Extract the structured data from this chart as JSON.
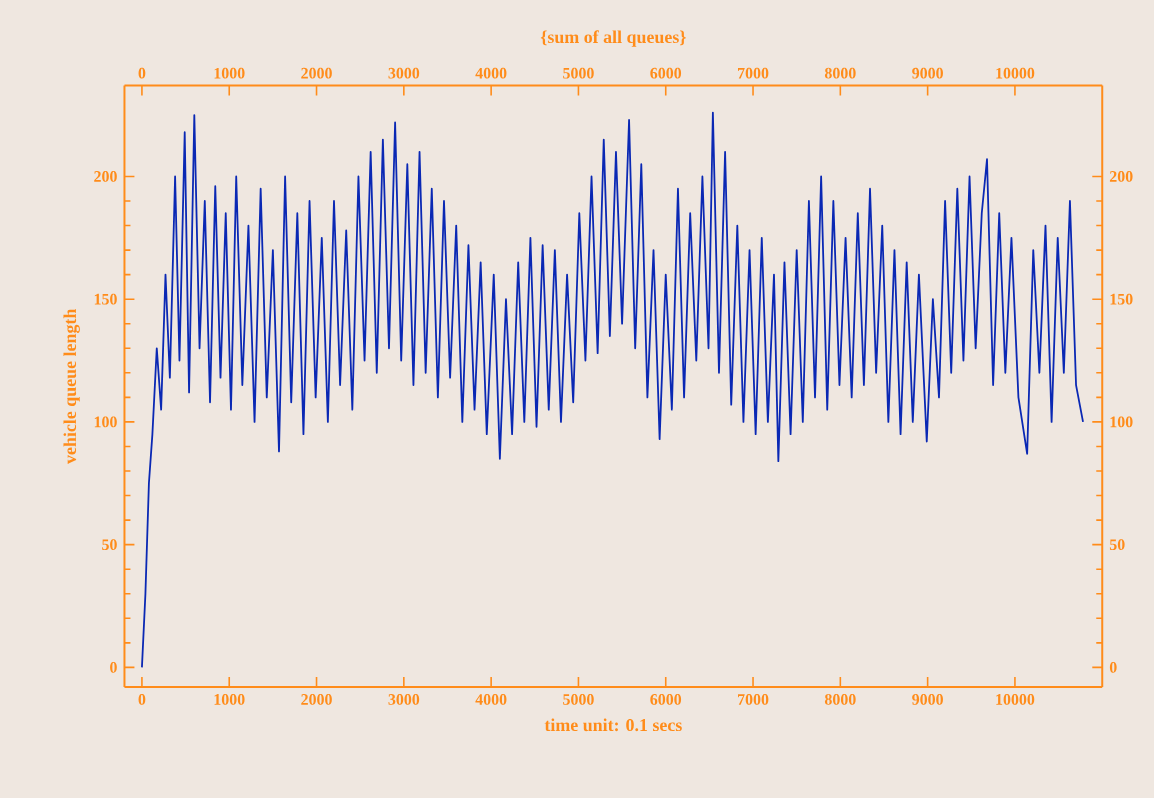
{
  "chart_data": {
    "type": "line",
    "title": "{sum of all queues}",
    "xlabel": "time unit: 0.1 secs",
    "ylabel": "vehicle queue length",
    "xlim": [
      -200,
      11000
    ],
    "xticks": [
      0,
      1000,
      2000,
      3000,
      4000,
      5000,
      6000,
      7000,
      8000,
      9000,
      10000
    ],
    "x2lim": [
      -200,
      11000
    ],
    "x2ticks": [
      0,
      1000,
      2000,
      3000,
      4000,
      5000,
      6000,
      7000,
      8000,
      9000,
      10000
    ],
    "ylim": [
      -8,
      237
    ],
    "yticks": [
      0,
      50,
      100,
      150,
      200
    ],
    "y2lim": [
      -8,
      237
    ],
    "y2ticks": [
      0,
      50,
      100,
      150,
      200
    ],
    "grid": false,
    "marker": "none",
    "line_style": "solid",
    "series": [
      {
        "color": "#0a28b4",
        "x": [
          0,
          40,
          80,
          120,
          170,
          220,
          270,
          320,
          380,
          430,
          490,
          540,
          600,
          660,
          720,
          780,
          840,
          900,
          960,
          1020,
          1080,
          1150,
          1220,
          1290,
          1360,
          1430,
          1500,
          1570,
          1640,
          1710,
          1780,
          1850,
          1920,
          1990,
          2060,
          2130,
          2200,
          2270,
          2340,
          2410,
          2480,
          2550,
          2620,
          2690,
          2760,
          2830,
          2900,
          2970,
          3040,
          3110,
          3180,
          3250,
          3320,
          3390,
          3460,
          3530,
          3600,
          3670,
          3740,
          3810,
          3880,
          3950,
          4030,
          4100,
          4170,
          4240,
          4310,
          4380,
          4450,
          4520,
          4590,
          4660,
          4730,
          4800,
          4870,
          4940,
          5010,
          5080,
          5150,
          5220,
          5290,
          5360,
          5430,
          5500,
          5580,
          5650,
          5720,
          5790,
          5860,
          5930,
          6000,
          6070,
          6140,
          6210,
          6280,
          6350,
          6420,
          6490,
          6540,
          6610,
          6680,
          6750,
          6820,
          6890,
          6960,
          7030,
          7100,
          7170,
          7240,
          7290,
          7360,
          7430,
          7500,
          7570,
          7640,
          7710,
          7780,
          7850,
          7920,
          7990,
          8060,
          8130,
          8200,
          8270,
          8340,
          8410,
          8480,
          8550,
          8620,
          8690,
          8760,
          8830,
          8900,
          8990,
          9060,
          9130,
          9200,
          9270,
          9340,
          9410,
          9480,
          9550,
          9620,
          9680,
          9750,
          9820,
          9890,
          9960,
          10040,
          10140,
          10210,
          10280,
          10350,
          10420,
          10490,
          10560,
          10630,
          10700,
          10780
        ],
        "values": [
          0,
          30,
          75,
          95,
          130,
          105,
          160,
          118,
          200,
          125,
          218,
          112,
          225,
          130,
          190,
          108,
          196,
          118,
          185,
          105,
          200,
          115,
          180,
          100,
          195,
          110,
          170,
          88,
          200,
          108,
          185,
          95,
          190,
          110,
          175,
          100,
          190,
          115,
          178,
          105,
          200,
          125,
          210,
          120,
          215,
          130,
          222,
          125,
          205,
          115,
          210,
          120,
          195,
          110,
          190,
          118,
          180,
          100,
          172,
          105,
          165,
          95,
          160,
          85,
          150,
          95,
          165,
          100,
          175,
          98,
          172,
          105,
          170,
          100,
          160,
          108,
          185,
          125,
          200,
          128,
          215,
          135,
          210,
          140,
          223,
          130,
          205,
          110,
          170,
          93,
          160,
          105,
          195,
          110,
          185,
          125,
          200,
          130,
          226,
          120,
          210,
          107,
          180,
          100,
          170,
          95,
          175,
          100,
          160,
          84,
          165,
          95,
          170,
          100,
          190,
          110,
          200,
          105,
          190,
          115,
          175,
          110,
          185,
          115,
          195,
          120,
          180,
          100,
          170,
          95,
          165,
          100,
          160,
          92,
          150,
          110,
          190,
          120,
          195,
          125,
          200,
          130,
          185,
          207,
          115,
          185,
          120,
          175,
          110,
          87,
          170,
          120,
          180,
          100,
          175,
          120,
          190,
          115,
          100
        ]
      }
    ]
  }
}
